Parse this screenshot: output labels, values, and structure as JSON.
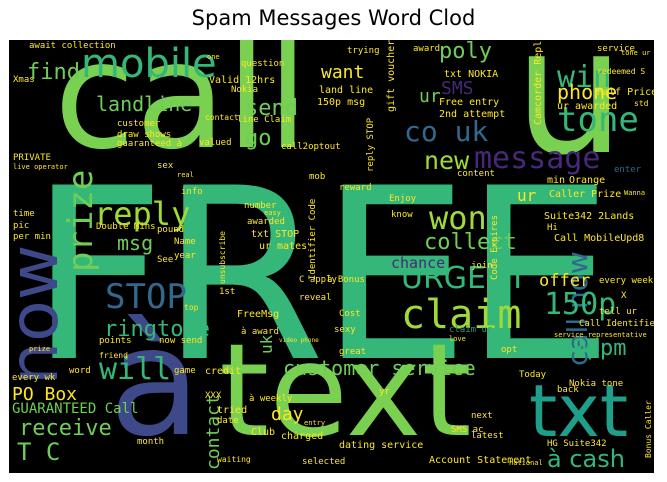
{
  "title": "Spam Messages Word Clod",
  "words": {
    "free": "FREE",
    "call": "call",
    "u": "u",
    "text": "text",
    "a_accent": "à",
    "now": "now",
    "txt": "txt",
    "mobile": "mobile",
    "prize": "prize",
    "claim": "claim",
    "reply": "reply",
    "stop": "STOP",
    "won": "won",
    "urgent": "URGENT",
    "tone": "tone",
    "win": "win",
    "message": "message",
    "co_uk": "co uk",
    "new": "new",
    "call_now": "call now",
    "please_call": "Please call",
    "ppm150": "150ppm",
    "p150": "150p",
    "customer_service": "customer service",
    "will": "will",
    "ringtone": "ringtone",
    "receive": "receive",
    "a_cash": "à cash",
    "landline": "landline",
    "send": "send",
    "go": "go",
    "find": "find",
    "want": "want",
    "poly": "poly",
    "sms": "SMS",
    "phone": "phone",
    "collect": "collect",
    "msg": "msg",
    "po_box": "PO Box",
    "guaranteed_call": "GUARANTEED Call",
    "t_c": "T C",
    "contact": "contact",
    "day": "day",
    "offer": "offer",
    "chance": "chance",
    "ur": "ur",
    "ur2": "ur",
    "uk": "uk",
    "awarded": "awarded",
    "txt_nokia": "txt NOKIA",
    "valid_12hrs": "Valid 12hrs",
    "land_line": "land line",
    "p150_msg": "150p msg",
    "gift_voucher": "gift voucher",
    "free_entry": "Free entry",
    "second_attempt": "2nd attempt",
    "camcorder_reply": "Camcorder Reply",
    "ur_awarded": "ur awarded",
    "half_price": "Half Price",
    "orange": "Orange",
    "min": "min",
    "enter": "enter",
    "caller_prize": "Caller Prize",
    "suite342_2lands": "Suite342 2Lands",
    "call_mobileupd8": "Call MobileUpd8",
    "every_week": "every week",
    "tell_ur": "tell ur",
    "call_identifier": "Call Identifier",
    "service_representative": "service representative",
    "today": "Today",
    "nokia_tone": "Nokia tone",
    "back": "back",
    "next": "next",
    "latest": "latest",
    "account_statement": "Account Statement",
    "selected": "selected",
    "dating_service": "dating service",
    "charged": "charged",
    "club": "Club",
    "tried": "tried",
    "date": "date",
    "xxx": "XXX",
    "month": "month",
    "waiting": "waiting",
    "credit": "credit",
    "game": "game",
    "every_wk": "every wk",
    "word": "word",
    "double_mins": "Double Mins",
    "txt_stop": "txt STOP",
    "ur_mates": "ur mates",
    "number": "number",
    "name": "Name",
    "see": "See",
    "year": "year",
    "first": "1st",
    "top": "top",
    "freemsg": "FreeMsg",
    "a_award": "à award",
    "now_send": "now send",
    "sexy": "sexy",
    "reveal": "reveal",
    "cost": "Cost",
    "great": "great",
    "opt": "opt",
    "claim_ur": "claim ur",
    "points": "points",
    "await_collection": "await collection",
    "xmas": "Xmas",
    "private": "PRIVATE",
    "customer": "customer",
    "draw_shows": "draw shows",
    "guaranteed_a": "guaranteed à",
    "valued": "valued",
    "sex": "sex",
    "question": "question",
    "trying": "trying",
    "award": "award",
    "service": "service",
    "nokia": "Nokia",
    "call2optout": "call2optout",
    "line_claim": "line Claim",
    "reply_stop": "reply STOP",
    "someone": "someone",
    "content": "content",
    "enjoy": "Enjoy",
    "know": "know",
    "hi": "Hi",
    "join": "join",
    "info": "info",
    "pic": "pic",
    "time": "time",
    "per_min": "per min",
    "live_operator": "live operator",
    "one": "one",
    "contact2": "contact",
    "reward": "reward",
    "mob": "mob",
    "real": "real",
    "pound": "pound",
    "easy": "easy",
    "identifier_code": "Identifier Code",
    "code_expires": "Code Expires",
    "a_bonus": "à Bonus",
    "c_apply": "C apply",
    "unsubscribe": "unsubscribe",
    "redeemed_s": "redeemed S",
    "std": "std",
    "tone_ur": "tone ur",
    "wanna": "Wanna",
    "hg_suite342": "HG Suite342",
    "a_weekly": "à weekly",
    "sms_ac": "SMS ac",
    "bonus_caller": "Bonus Caller",
    "yr": "yr",
    "entry": "entry",
    "video_phone": "video phone",
    "friend": "friend",
    "prize2": "prize",
    "x": "X",
    "love": "love",
    "national": "national"
  },
  "colors": {
    "background": "#000000",
    "green": "#7ad151",
    "lightgreen": "#a0da39",
    "teal": "#1f9e89",
    "seagreen": "#35b779",
    "blue": "#31688e",
    "darkblue": "#3e4989",
    "purple": "#482878",
    "darkpurple": "#440154",
    "yellow": "#fde725",
    "mint": "#6ece58"
  }
}
